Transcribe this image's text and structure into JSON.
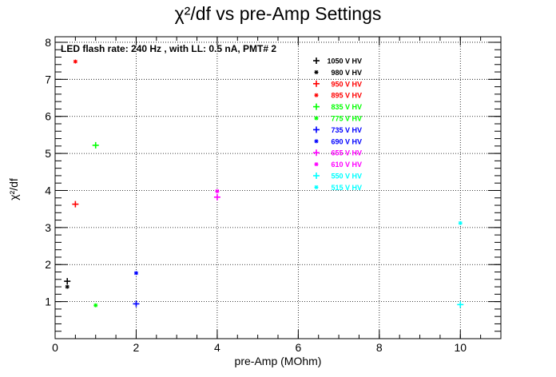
{
  "chart_data": {
    "type": "scatter",
    "title": "χ²/df vs pre-Amp Settings",
    "xlabel": "pre-Amp (MOhm)",
    "ylabel": "χ²/df",
    "xlim": [
      0,
      11
    ],
    "ylim": [
      0,
      8.15
    ],
    "x_ticks": [
      0,
      2,
      4,
      6,
      8,
      10
    ],
    "y_ticks": [
      1,
      2,
      3,
      4,
      5,
      6,
      7,
      8
    ],
    "grid": true,
    "legend_position": "top-right",
    "annotation": "LED flash rate: 240 Hz , with LL: 0.5 nA, PMT# 2",
    "series": [
      {
        "name": "1050 V HV",
        "color": "#000000",
        "marker": "cross",
        "points": [
          [
            0.3,
            1.55
          ]
        ]
      },
      {
        "name": "980 V HV",
        "color": "#000000",
        "marker": "star",
        "points": [
          [
            0.3,
            1.4
          ]
        ]
      },
      {
        "name": "950 V HV",
        "color": "#ff0000",
        "marker": "cross",
        "points": [
          [
            0.5,
            3.63
          ]
        ]
      },
      {
        "name": "895 V HV",
        "color": "#ff0000",
        "marker": "star",
        "points": [
          [
            0.5,
            7.48
          ]
        ]
      },
      {
        "name": "835 V HV",
        "color": "#00ff00",
        "marker": "cross",
        "points": [
          [
            1.0,
            5.22
          ]
        ]
      },
      {
        "name": "775 V HV",
        "color": "#00ff00",
        "marker": "star",
        "points": [
          [
            1.0,
            0.9
          ]
        ]
      },
      {
        "name": "735 V HV",
        "color": "#0000ff",
        "marker": "cross",
        "points": [
          [
            2.0,
            0.94
          ]
        ]
      },
      {
        "name": "690 V HV",
        "color": "#0000ff",
        "marker": "star",
        "points": [
          [
            2.0,
            1.77
          ]
        ]
      },
      {
        "name": "655 V HV",
        "color": "#ff00ff",
        "marker": "cross",
        "points": [
          [
            4.0,
            3.82
          ]
        ]
      },
      {
        "name": "610 V HV",
        "color": "#ff00ff",
        "marker": "star",
        "points": [
          [
            4.0,
            3.98
          ]
        ]
      },
      {
        "name": "550 V HV",
        "color": "#00ffff",
        "marker": "cross",
        "points": [
          [
            10.0,
            0.92
          ]
        ]
      },
      {
        "name": "515 V HV",
        "color": "#00ffff",
        "marker": "star",
        "points": [
          [
            10.0,
            3.12
          ]
        ]
      }
    ]
  }
}
